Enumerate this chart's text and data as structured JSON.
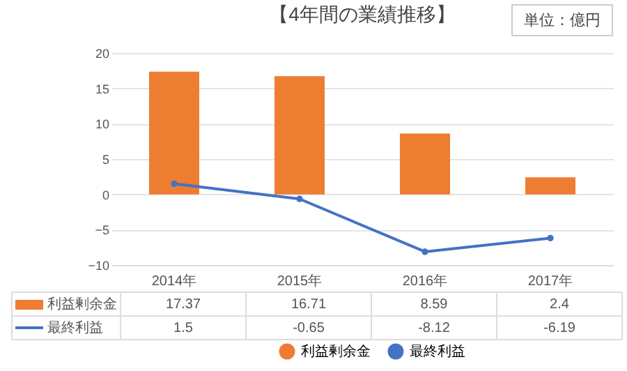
{
  "chart_data": {
    "type": "bar",
    "title": "【4年間の業績推移】",
    "annotations": [
      "単位：億円"
    ],
    "categories": [
      "2014年",
      "2015年",
      "2016年",
      "2017年"
    ],
    "series": [
      {
        "name": "利益剰余金",
        "color": "#ed7d31",
        "values": [
          17.37,
          16.71,
          8.59,
          2.4
        ]
      },
      {
        "name": "最終利益",
        "type": "line",
        "color": "#4472c4",
        "values": [
          1.5,
          -0.65,
          -8.12,
          -6.19
        ]
      }
    ],
    "ylim": [
      -10,
      20
    ],
    "yticks": [
      -10,
      -5,
      0,
      5,
      10,
      15,
      20
    ],
    "grid": "y",
    "legend": "bottom",
    "marker": "circle",
    "line_style": "solid",
    "data_labels": true
  }
}
